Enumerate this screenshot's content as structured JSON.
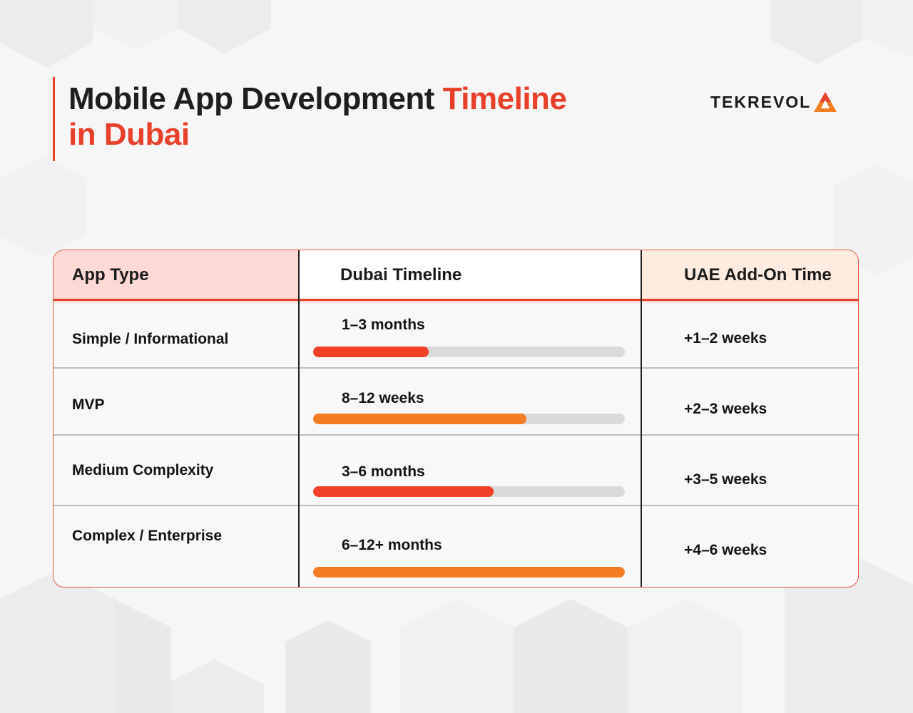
{
  "header": {
    "title_part1": "Mobile App Development ",
    "title_highlight": "Timeline",
    "title_line2": "in Dubai",
    "logo_text": "TEKREVOL"
  },
  "table": {
    "columns": [
      "App Type",
      "Dubai Timeline",
      "UAE Add-On Time"
    ],
    "rows": [
      {
        "type": "Simple / Informational",
        "timeline": "1–3 months",
        "progress": 0.37,
        "bar_color": "#f04128",
        "addon": "+1–2 weeks"
      },
      {
        "type": "MVP",
        "timeline": "8–12 weeks",
        "progress": 0.685,
        "bar_color": "#f47c22",
        "addon": "+2–3 weeks"
      },
      {
        "type": "Medium Complexity",
        "timeline": "3–6 months",
        "progress": 0.58,
        "bar_color": "#f04128",
        "addon": "+3–5 weeks"
      },
      {
        "type": "Complex / Enterprise",
        "timeline": "6–12+ months",
        "progress": 1.0,
        "bar_color": "#f47c22",
        "addon": "+4–6 weeks"
      }
    ]
  },
  "colors": {
    "accent": "#e8402a",
    "accent_orange": "#f47c22",
    "header_type_bg": "#fdd9d5",
    "header_addon_bg": "#fdebe0",
    "track": "#dadada"
  }
}
